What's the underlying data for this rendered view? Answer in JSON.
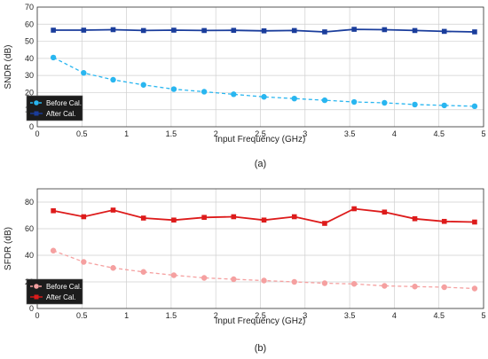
{
  "chart_data": [
    {
      "type": "line",
      "caption": "(a)",
      "xlabel": "Input Frequency (GHz)",
      "ylabel": "SNDR (dB)",
      "xlim": [
        0,
        5
      ],
      "ylim": [
        0,
        70
      ],
      "xticks": [
        "0",
        "0.5",
        "1",
        "1.5",
        "2",
        "2.5",
        "3",
        "3.5",
        "4",
        "4.5",
        "5"
      ],
      "yticks": [
        "0",
        "10",
        "20",
        "30",
        "40",
        "50",
        "60",
        "70"
      ],
      "grid": true,
      "legend_position": "bottom-left",
      "x": [
        0.18,
        0.52,
        0.85,
        1.19,
        1.53,
        1.87,
        2.2,
        2.54,
        2.88,
        3.22,
        3.55,
        3.89,
        4.23,
        4.56,
        4.9
      ],
      "series": [
        {
          "name": "Before Cal.",
          "color": "#29b6f0",
          "style": "dashed",
          "marker": "circle",
          "values": [
            40.5,
            31.5,
            27.5,
            24.5,
            22,
            20.5,
            19,
            17.5,
            16.5,
            15.5,
            14.5,
            14,
            13,
            12.5,
            12
          ]
        },
        {
          "name": "After Cal.",
          "color": "#1a3d9c",
          "style": "solid",
          "marker": "square",
          "values": [
            56.5,
            56.5,
            56.8,
            56.3,
            56.5,
            56.3,
            56.4,
            56.1,
            56.3,
            55.5,
            57,
            56.8,
            56.3,
            55.8,
            55.5
          ]
        }
      ]
    },
    {
      "type": "line",
      "caption": "(b)",
      "xlabel": "Input Frequency (GHz)",
      "ylabel": "SFDR (dB)",
      "xlim": [
        0,
        5
      ],
      "ylim": [
        0,
        90
      ],
      "xticks": [
        "0",
        "0.5",
        "1",
        "1.5",
        "2",
        "2.5",
        "3",
        "3.5",
        "4",
        "4.5",
        "5"
      ],
      "yticks": [
        "0",
        "20",
        "40",
        "60",
        "80"
      ],
      "grid": true,
      "legend_position": "bottom-left",
      "x": [
        0.18,
        0.52,
        0.85,
        1.19,
        1.53,
        1.87,
        2.2,
        2.54,
        2.88,
        3.22,
        3.55,
        3.89,
        4.23,
        4.56,
        4.9
      ],
      "series": [
        {
          "name": "Before Cal.",
          "color": "#f5a0a0",
          "style": "dashed",
          "marker": "circle",
          "values": [
            43.5,
            35,
            30.5,
            27.5,
            25,
            23,
            22,
            21,
            20,
            19,
            18.5,
            17,
            16.5,
            16,
            15
          ]
        },
        {
          "name": "After Cal.",
          "color": "#dd1b1b",
          "style": "solid",
          "marker": "square",
          "values": [
            73.5,
            69,
            74,
            68,
            66.5,
            68.5,
            69,
            66.5,
            69,
            64,
            75,
            72.5,
            67.5,
            65.5,
            65
          ]
        }
      ]
    }
  ]
}
